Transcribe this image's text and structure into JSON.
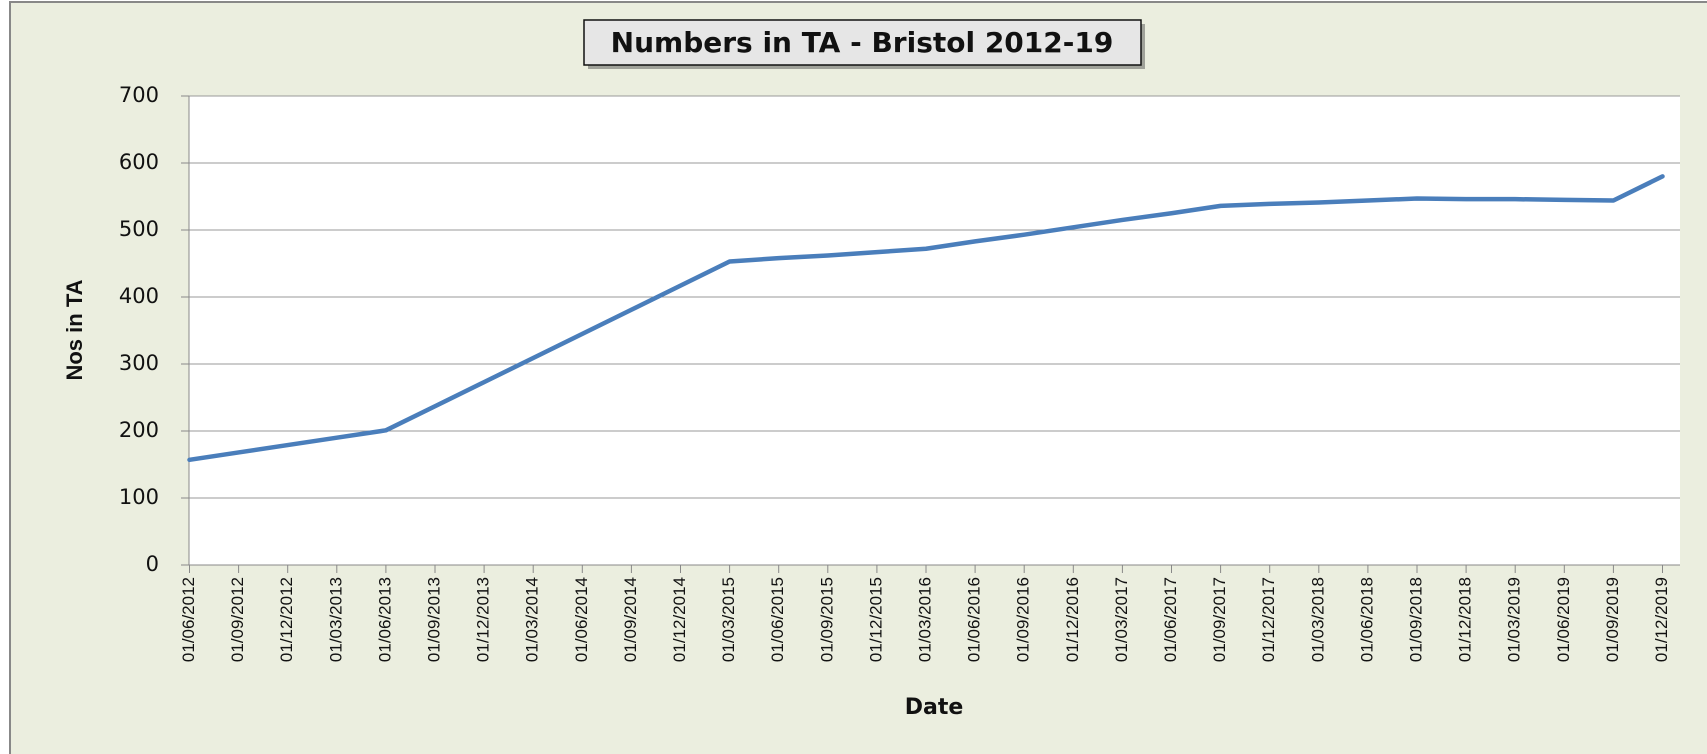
{
  "chart_data": {
    "type": "line",
    "title": "Numbers in TA - Bristol 2012-19",
    "x_label": "Date",
    "y_label": "Nos in TA",
    "categories": [
      "01/06/2012",
      "01/09/2012",
      "01/12/2012",
      "01/03/2013",
      "01/06/2013",
      "01/09/2013",
      "01/12/2013",
      "01/03/2014",
      "01/06/2014",
      "01/09/2014",
      "01/12/2014",
      "01/03/2015",
      "01/06/2015",
      "01/09/2015",
      "01/12/2015",
      "01/03/2016",
      "01/06/2016",
      "01/09/2016",
      "01/12/2016",
      "01/03/2017",
      "01/06/2017",
      "01/09/2017",
      "01/12/2017",
      "01/03/2018",
      "01/06/2018",
      "01/09/2018",
      "01/12/2018",
      "01/03/2019",
      "01/06/2019",
      "01/09/2019",
      "01/12/2019"
    ],
    "values": [
      157,
      168,
      179,
      190,
      201,
      237,
      273,
      309,
      345,
      381,
      417,
      453,
      458,
      462,
      467,
      472,
      483,
      493,
      504,
      515,
      525,
      536,
      539,
      541,
      544,
      547,
      546,
      546,
      545,
      544,
      580
    ],
    "color": "#4a7ebb",
    "ylim": [
      0,
      700
    ],
    "yticks": [
      0,
      100,
      200,
      300,
      400,
      500,
      600,
      700
    ],
    "grid": true
  }
}
